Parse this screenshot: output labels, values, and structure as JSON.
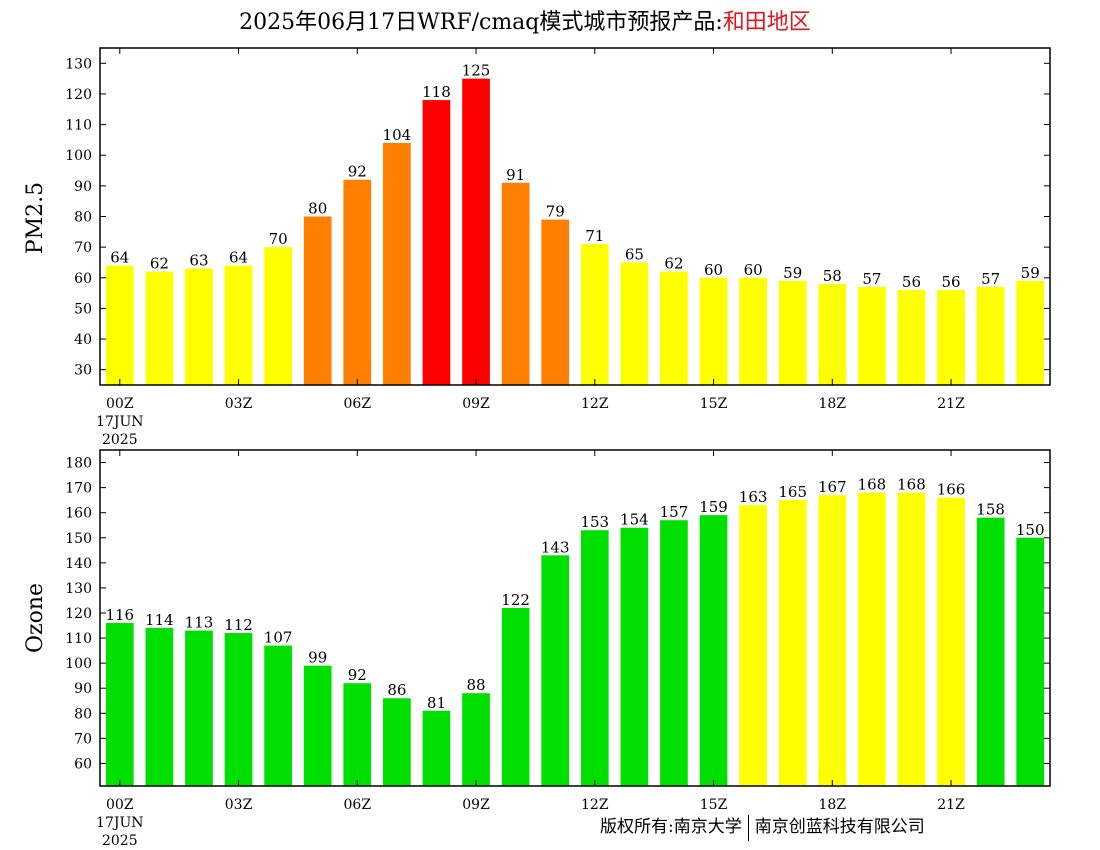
{
  "title": {
    "prefix": "2025年06月17日WRF/cmaq模式城市预报产品:",
    "region": "和田地区"
  },
  "copyright": {
    "owner_label": "版权所有:",
    "org1": "南京大学",
    "org2": "南京创蓝科技有限公司"
  },
  "colors": {
    "yellow": "#ffff00",
    "orange": "#ff8000",
    "red": "#ff0000",
    "green": "#00e000"
  },
  "chart_data": [
    {
      "type": "bar",
      "ylabel": "PM2.5",
      "ylim": [
        25,
        135
      ],
      "yticks": [
        30,
        40,
        50,
        60,
        70,
        80,
        90,
        100,
        110,
        120,
        130
      ],
      "xtick_labels": [
        "00Z",
        "03Z",
        "06Z",
        "09Z",
        "12Z",
        "15Z",
        "18Z",
        "21Z"
      ],
      "date_label": [
        "17JUN",
        "2025"
      ],
      "values": [
        64,
        62,
        63,
        64,
        70,
        80,
        92,
        104,
        118,
        125,
        91,
        79,
        71,
        65,
        62,
        60,
        60,
        59,
        58,
        57,
        56,
        56,
        57,
        59
      ],
      "bar_colors": [
        "yellow",
        "yellow",
        "yellow",
        "yellow",
        "yellow",
        "orange",
        "orange",
        "orange",
        "red",
        "red",
        "orange",
        "orange",
        "yellow",
        "yellow",
        "yellow",
        "yellow",
        "yellow",
        "yellow",
        "yellow",
        "yellow",
        "yellow",
        "yellow",
        "yellow",
        "yellow"
      ]
    },
    {
      "type": "bar",
      "ylabel": "Ozone",
      "ylim": [
        51,
        185
      ],
      "yticks": [
        60,
        70,
        80,
        90,
        100,
        110,
        120,
        130,
        140,
        150,
        160,
        170,
        180
      ],
      "xtick_labels": [
        "00Z",
        "03Z",
        "06Z",
        "09Z",
        "12Z",
        "15Z",
        "18Z",
        "21Z"
      ],
      "date_label": [
        "17JUN",
        "2025"
      ],
      "values": [
        116,
        114,
        113,
        112,
        107,
        99,
        92,
        86,
        81,
        88,
        122,
        143,
        153,
        154,
        157,
        159,
        163,
        165,
        167,
        168,
        168,
        166,
        158,
        150
      ],
      "bar_colors": [
        "green",
        "green",
        "green",
        "green",
        "green",
        "green",
        "green",
        "green",
        "green",
        "green",
        "green",
        "green",
        "green",
        "green",
        "green",
        "green",
        "yellow",
        "yellow",
        "yellow",
        "yellow",
        "yellow",
        "yellow",
        "green",
        "green"
      ]
    }
  ]
}
